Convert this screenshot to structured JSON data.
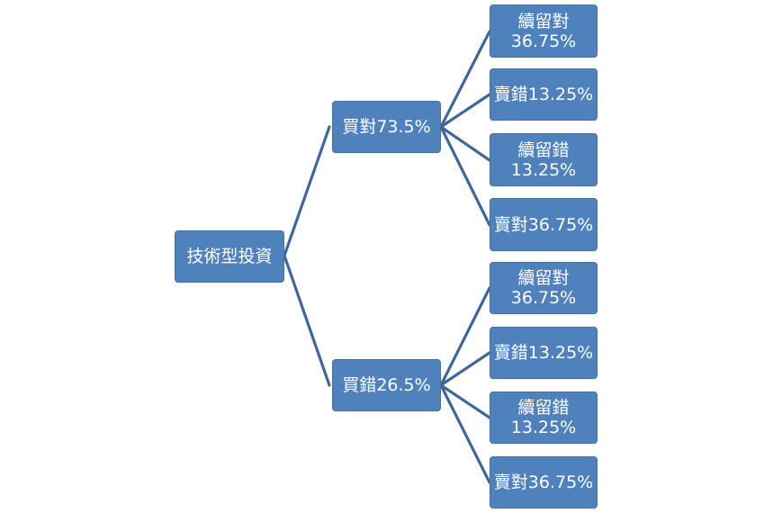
{
  "diagram": {
    "root": {
      "label": "技術型投資"
    },
    "branches": [
      {
        "label": "買對73.5%",
        "children": [
          {
            "label": "續留對\n36.75%"
          },
          {
            "label": "賣錯13.25%"
          },
          {
            "label": "續留錯\n13.25%"
          },
          {
            "label": "賣對36.75%"
          }
        ]
      },
      {
        "label": "買錯26.5%",
        "children": [
          {
            "label": "續留對\n36.75%"
          },
          {
            "label": "賣錯13.25%"
          },
          {
            "label": "續留錯\n13.25%"
          },
          {
            "label": "賣對36.75%"
          }
        ]
      }
    ],
    "colors": {
      "node_fill": "#4f81bd",
      "node_border": "#47709f",
      "connector": "#41679a",
      "text": "#ffffff"
    }
  }
}
